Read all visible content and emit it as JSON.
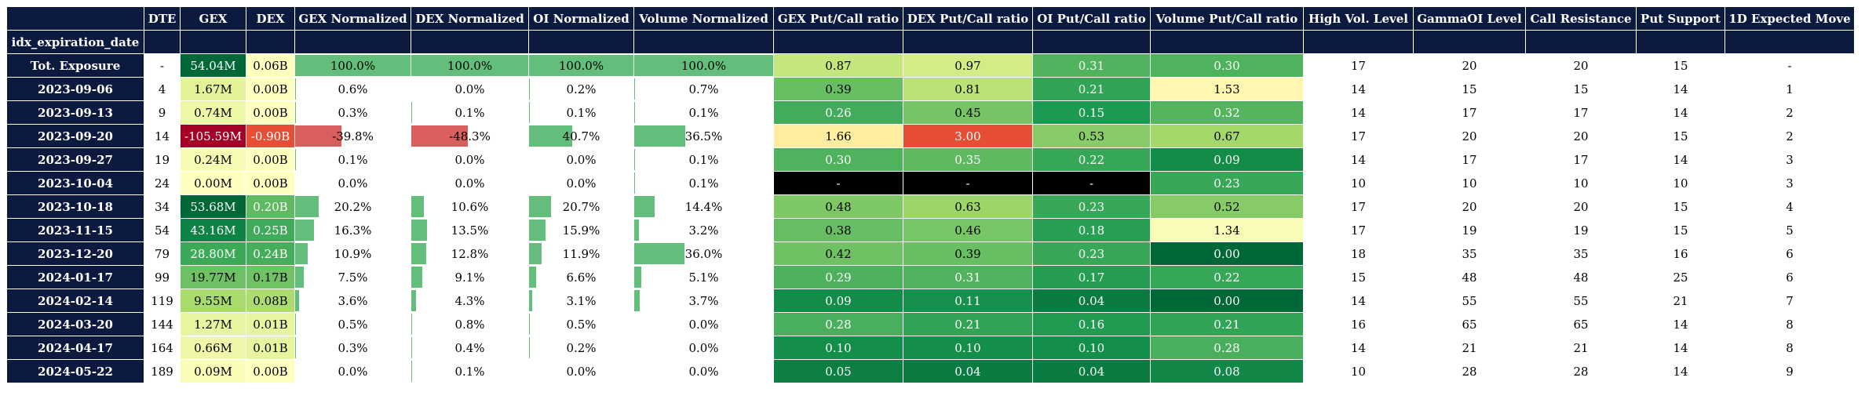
{
  "index_name": "idx_expiration_date",
  "columns": [
    "DTE",
    "GEX",
    "DEX",
    "GEX Normalized",
    "DEX Normalized",
    "OI Normalized",
    "Volume Normalized",
    "GEX Put/Call ratio",
    "DEX Put/Call ratio",
    "OI Put/Call ratio",
    "Volume Put/Call ratio",
    "High Vol. Level",
    "GammaOI Level",
    "Call Resistance",
    "Put Support",
    "1D Expected Move"
  ],
  "rows": [
    {
      "idx": "Tot. Exposure",
      "dte": "-",
      "gex": "54.04M",
      "dex": "0.06B",
      "gex_n": "100.0%",
      "dex_n": "100.0%",
      "oi_n": "100.0%",
      "vol_n": "100.0%",
      "gex_pc": "0.87",
      "dex_pc": "0.97",
      "oi_pc": "0.31",
      "vol_pc": "0.30",
      "hvl": "17",
      "goi": "20",
      "cr": "20",
      "ps": "15",
      "em": "-"
    },
    {
      "idx": "2023-09-06",
      "dte": "4",
      "gex": "1.67M",
      "dex": "0.00B",
      "gex_n": "0.6%",
      "dex_n": "0.0%",
      "oi_n": "0.2%",
      "vol_n": "0.7%",
      "gex_pc": "0.39",
      "dex_pc": "0.81",
      "oi_pc": "0.21",
      "vol_pc": "1.53",
      "hvl": "14",
      "goi": "15",
      "cr": "15",
      "ps": "14",
      "em": "1"
    },
    {
      "idx": "2023-09-13",
      "dte": "9",
      "gex": "0.74M",
      "dex": "0.00B",
      "gex_n": "0.3%",
      "dex_n": "0.1%",
      "oi_n": "0.1%",
      "vol_n": "0.1%",
      "gex_pc": "0.26",
      "dex_pc": "0.45",
      "oi_pc": "0.15",
      "vol_pc": "0.32",
      "hvl": "14",
      "goi": "17",
      "cr": "17",
      "ps": "14",
      "em": "2"
    },
    {
      "idx": "2023-09-20",
      "dte": "14",
      "gex": "-105.59M",
      "dex": "-0.90B",
      "gex_n": "-39.8%",
      "dex_n": "-48.3%",
      "oi_n": "40.7%",
      "vol_n": "36.5%",
      "gex_pc": "1.66",
      "dex_pc": "3.00",
      "oi_pc": "0.53",
      "vol_pc": "0.67",
      "hvl": "17",
      "goi": "20",
      "cr": "20",
      "ps": "15",
      "em": "2"
    },
    {
      "idx": "2023-09-27",
      "dte": "19",
      "gex": "0.24M",
      "dex": "0.00B",
      "gex_n": "0.1%",
      "dex_n": "0.0%",
      "oi_n": "0.0%",
      "vol_n": "0.1%",
      "gex_pc": "0.30",
      "dex_pc": "0.35",
      "oi_pc": "0.22",
      "vol_pc": "0.09",
      "hvl": "14",
      "goi": "17",
      "cr": "17",
      "ps": "14",
      "em": "3"
    },
    {
      "idx": "2023-10-04",
      "dte": "24",
      "gex": "0.00M",
      "dex": "0.00B",
      "gex_n": "0.0%",
      "dex_n": "0.0%",
      "oi_n": "0.0%",
      "vol_n": "0.1%",
      "gex_pc": "-",
      "dex_pc": "-",
      "oi_pc": "-",
      "vol_pc": "0.23",
      "hvl": "10",
      "goi": "10",
      "cr": "10",
      "ps": "10",
      "em": "3"
    },
    {
      "idx": "2023-10-18",
      "dte": "34",
      "gex": "53.68M",
      "dex": "0.20B",
      "gex_n": "20.2%",
      "dex_n": "10.6%",
      "oi_n": "20.7%",
      "vol_n": "14.4%",
      "gex_pc": "0.48",
      "dex_pc": "0.63",
      "oi_pc": "0.23",
      "vol_pc": "0.52",
      "hvl": "17",
      "goi": "20",
      "cr": "20",
      "ps": "15",
      "em": "4"
    },
    {
      "idx": "2023-11-15",
      "dte": "54",
      "gex": "43.16M",
      "dex": "0.25B",
      "gex_n": "16.3%",
      "dex_n": "13.5%",
      "oi_n": "15.9%",
      "vol_n": "3.2%",
      "gex_pc": "0.38",
      "dex_pc": "0.46",
      "oi_pc": "0.18",
      "vol_pc": "1.34",
      "hvl": "17",
      "goi": "19",
      "cr": "19",
      "ps": "15",
      "em": "5"
    },
    {
      "idx": "2023-12-20",
      "dte": "79",
      "gex": "28.80M",
      "dex": "0.24B",
      "gex_n": "10.9%",
      "dex_n": "12.8%",
      "oi_n": "11.9%",
      "vol_n": "36.0%",
      "gex_pc": "0.42",
      "dex_pc": "0.39",
      "oi_pc": "0.23",
      "vol_pc": "0.00",
      "hvl": "18",
      "goi": "35",
      "cr": "35",
      "ps": "16",
      "em": "6"
    },
    {
      "idx": "2024-01-17",
      "dte": "99",
      "gex": "19.77M",
      "dex": "0.17B",
      "gex_n": "7.5%",
      "dex_n": "9.1%",
      "oi_n": "6.6%",
      "vol_n": "5.1%",
      "gex_pc": "0.29",
      "dex_pc": "0.31",
      "oi_pc": "0.17",
      "vol_pc": "0.22",
      "hvl": "15",
      "goi": "48",
      "cr": "48",
      "ps": "25",
      "em": "6"
    },
    {
      "idx": "2024-02-14",
      "dte": "119",
      "gex": "9.55M",
      "dex": "0.08B",
      "gex_n": "3.6%",
      "dex_n": "4.3%",
      "oi_n": "3.1%",
      "vol_n": "3.7%",
      "gex_pc": "0.09",
      "dex_pc": "0.11",
      "oi_pc": "0.04",
      "vol_pc": "0.00",
      "hvl": "14",
      "goi": "55",
      "cr": "55",
      "ps": "21",
      "em": "7"
    },
    {
      "idx": "2024-03-20",
      "dte": "144",
      "gex": "1.27M",
      "dex": "0.01B",
      "gex_n": "0.5%",
      "dex_n": "0.8%",
      "oi_n": "0.5%",
      "vol_n": "0.0%",
      "gex_pc": "0.28",
      "dex_pc": "0.21",
      "oi_pc": "0.16",
      "vol_pc": "0.21",
      "hvl": "16",
      "goi": "65",
      "cr": "65",
      "ps": "14",
      "em": "8"
    },
    {
      "idx": "2024-04-17",
      "dte": "164",
      "gex": "0.66M",
      "dex": "0.01B",
      "gex_n": "0.3%",
      "dex_n": "0.4%",
      "oi_n": "0.2%",
      "vol_n": "0.0%",
      "gex_pc": "0.10",
      "dex_pc": "0.10",
      "oi_pc": "0.10",
      "vol_pc": "0.28",
      "hvl": "14",
      "goi": "21",
      "cr": "21",
      "ps": "14",
      "em": "8"
    },
    {
      "idx": "2024-05-22",
      "dte": "189",
      "gex": "0.09M",
      "dex": "0.00B",
      "gex_n": "0.0%",
      "dex_n": "0.1%",
      "oi_n": "0.0%",
      "vol_n": "0.0%",
      "gex_pc": "0.05",
      "dex_pc": "0.04",
      "oi_pc": "0.04",
      "vol_pc": "0.08",
      "hvl": "10",
      "goi": "28",
      "cr": "28",
      "ps": "14",
      "em": "9"
    }
  ],
  "colors": {
    "header_bg": "#0d1a40",
    "header_text": "#ffffff",
    "bar_positive": "#63be7b",
    "bar_negative": "#d95f5f",
    "na_cell": "#000000"
  }
}
